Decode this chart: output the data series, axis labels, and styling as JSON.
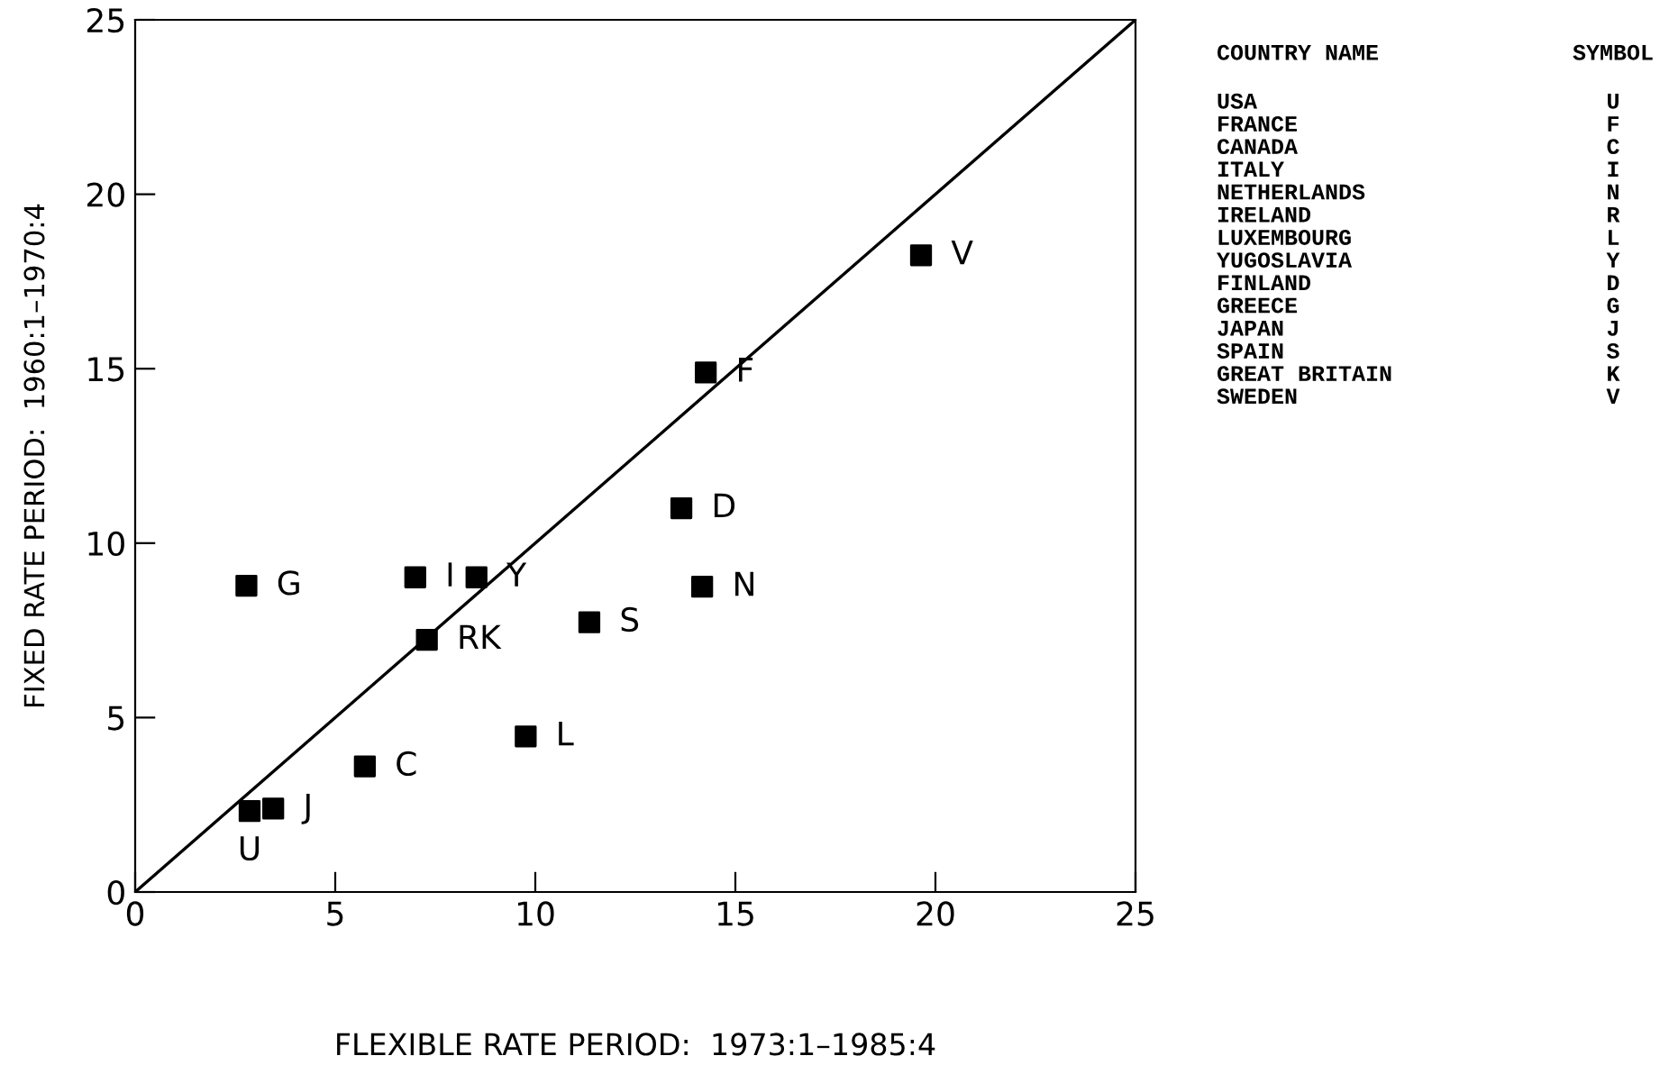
{
  "chart_data": {
    "type": "scatter",
    "xlabel": "FLEXIBLE RATE PERIOD:  1973:1–1985:4",
    "ylabel": "FIXED RATE PERIOD:  1960:1–1970:4",
    "xlim": [
      0,
      25
    ],
    "ylim": [
      0,
      25
    ],
    "xticks": [
      0,
      5,
      10,
      15,
      20,
      25
    ],
    "yticks": [
      0,
      5,
      10,
      15,
      20,
      25
    ],
    "grid": false,
    "marker": "square",
    "series": [
      {
        "color": "#000000",
        "x": [
          2.86,
          14.26,
          5.74,
          7.0,
          14.17,
          7.29,
          9.76,
          8.53,
          13.65,
          2.78,
          3.45,
          11.35,
          19.64
        ],
        "values": [
          2.32,
          14.89,
          3.6,
          9.02,
          8.75,
          7.23,
          4.46,
          9.02,
          11.0,
          8.78,
          2.39,
          7.73,
          18.25
        ]
      },
      {
        "type": "line",
        "color": "#000000",
        "marker": "none",
        "x": [
          0,
          25
        ],
        "values": [
          0,
          25
        ]
      }
    ],
    "annotations": [
      {
        "text": "U",
        "x": 2.86,
        "y": 2.32
      },
      {
        "text": "F",
        "x": 14.26,
        "y": 14.89
      },
      {
        "text": "C",
        "x": 5.74,
        "y": 3.6
      },
      {
        "text": "I",
        "x": 7.0,
        "y": 9.02
      },
      {
        "text": "N",
        "x": 14.17,
        "y": 8.75
      },
      {
        "text": "RK",
        "x": 7.29,
        "y": 7.23
      },
      {
        "text": "L",
        "x": 9.76,
        "y": 4.46
      },
      {
        "text": "Y",
        "x": 8.53,
        "y": 9.02
      },
      {
        "text": "D",
        "x": 13.65,
        "y": 11.0
      },
      {
        "text": "G",
        "x": 2.78,
        "y": 8.78
      },
      {
        "text": "J",
        "x": 3.45,
        "y": 2.39
      },
      {
        "text": "S",
        "x": 11.35,
        "y": 7.73
      },
      {
        "text": "V",
        "x": 19.64,
        "y": 18.25
      },
      "COUNTRY NAME",
      "SYMBOL",
      "USA",
      "U",
      "FRANCE",
      "F",
      "CANADA",
      "C",
      "ITALY",
      "I",
      "NETHERLANDS",
      "N",
      "IRELAND",
      "R",
      "LUXEMBOURG",
      "L",
      "YUGOSLAVIA",
      "Y",
      "FINLAND",
      "D",
      "GREECE",
      "G",
      "JAPAN",
      "J",
      "SPAIN",
      "S",
      "GREAT BRITAIN",
      "K",
      "SWEDEN",
      "V"
    ]
  }
}
